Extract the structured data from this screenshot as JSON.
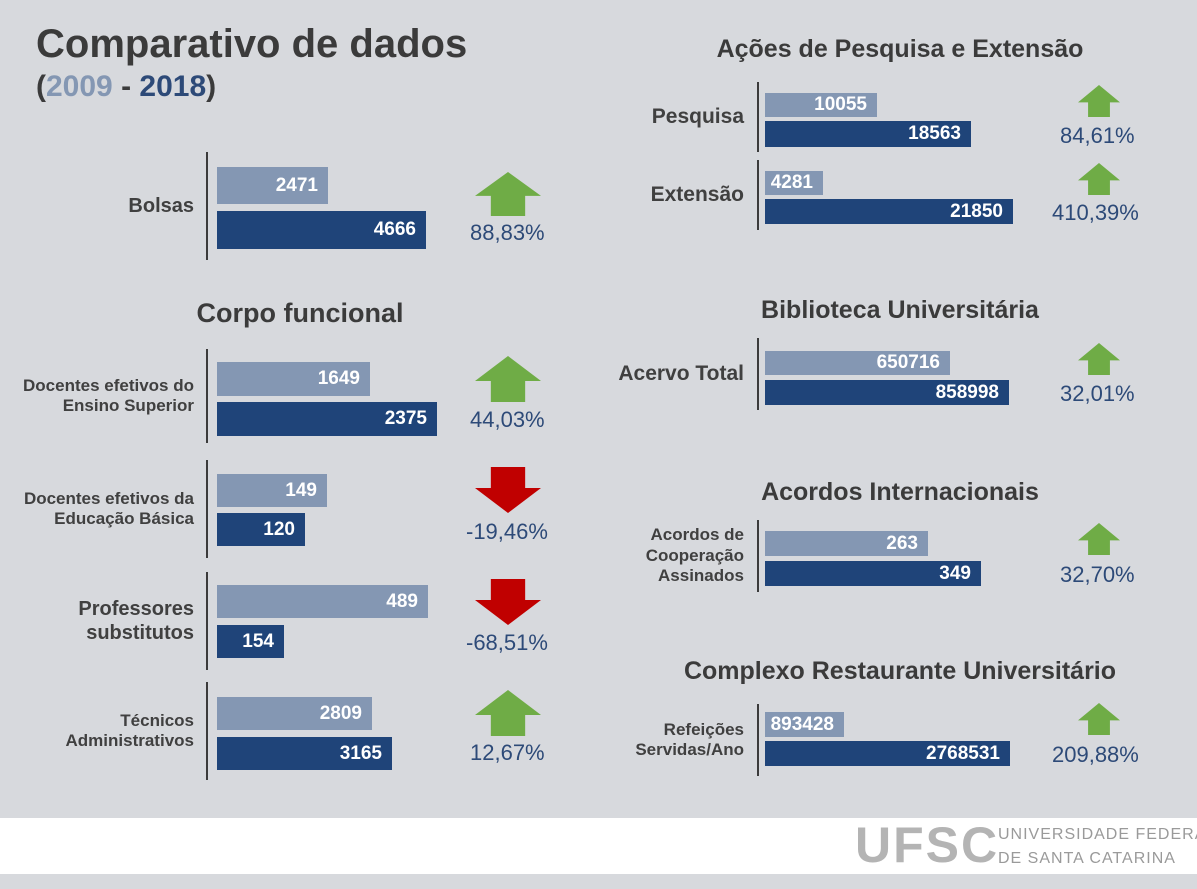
{
  "page": {
    "title": "Comparativo de dados",
    "subtitle_open": "(",
    "year_start": "2009",
    "subtitle_sep": " - ",
    "year_end": "2018",
    "subtitle_close": ")"
  },
  "colors": {
    "bar_2009": "#8497b3",
    "bar_2018": "#1f4479",
    "arrow_up": "#6fac46",
    "arrow_down": "#c00000",
    "percent_text": "#2d4a78"
  },
  "sections": {
    "corpo_funcional": "Corpo funcional",
    "pesquisa_extensao": "Ações de Pesquisa e Extensão",
    "biblioteca": "Biblioteca Universitária",
    "acordos": "Acordos Internacionais",
    "restaurante": "Complexo Restaurante Universitário"
  },
  "chart_data": {
    "type": "bar",
    "series_names": [
      "2009",
      "2018"
    ],
    "series": [
      {
        "name": "2009",
        "values": [
          2471,
          1649,
          149,
          489,
          2809,
          10055,
          4281,
          650716,
          263,
          893428
        ]
      },
      {
        "name": "2018",
        "values": [
          4666,
          2375,
          120,
          154,
          3165,
          18563,
          21850,
          858998,
          349,
          2768531
        ]
      }
    ],
    "items": [
      {
        "label": "Bolsas",
        "v2009": 2471,
        "v2018": 4666,
        "change": "88,83%",
        "direction": "up",
        "scale_max": 5000
      },
      {
        "label": "Docentes efetivos do Ensino Superior",
        "v2009": 1649,
        "v2018": 2375,
        "change": "44,03%",
        "direction": "up",
        "scale_max": 5000
      },
      {
        "label": "Docentes efetivos da Educação Básica",
        "v2009": 149,
        "v2018": 120,
        "change": "-19,46%",
        "direction": "down",
        "scale_max": 250
      },
      {
        "label": "Professores substitutos",
        "v2009": 489,
        "v2018": 154,
        "change": "-68,51%",
        "direction": "down",
        "scale_max": 500
      },
      {
        "label": "Técnicos Administrativos",
        "v2009": 2809,
        "v2018": 3165,
        "change": "12,67%",
        "direction": "up",
        "scale_max": 4400
      },
      {
        "label": "Pesquisa",
        "v2009": 10055,
        "v2018": 18563,
        "change": "84,61%",
        "direction": "up",
        "scale_max": 25000
      },
      {
        "label": "Extensão",
        "v2009": 4281,
        "v2018": 21850,
        "change": "410,39%",
        "direction": "up",
        "scale_max": 25000
      },
      {
        "label": "Acervo Total",
        "v2009": 650716,
        "v2018": 858998,
        "change": "32,01%",
        "direction": "up",
        "scale_max": 1000000
      },
      {
        "label": "Acordos de Cooperação Assinados",
        "v2009": 263,
        "v2018": 349,
        "change": "32,70%",
        "direction": "up",
        "scale_max": 450
      },
      {
        "label": "Refeições Servidas/Ano",
        "v2009": 893428,
        "v2018": 2768531,
        "change": "209,88%",
        "direction": "up",
        "scale_max": 3200000
      }
    ]
  },
  "footer": {
    "logo": "UFSC",
    "line1": "UNIVERSIDADE FEDERAL",
    "line2": "DE SANTA CATARINA"
  }
}
